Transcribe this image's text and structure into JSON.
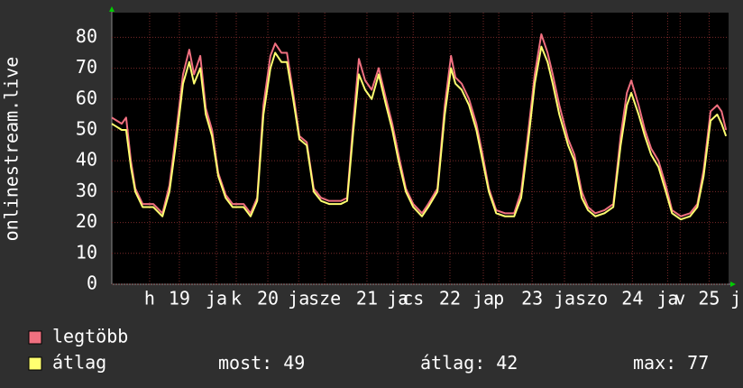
{
  "chart_data": {
    "type": "line",
    "y_label": "onlinestream.live",
    "xlim": [
      0,
      168
    ],
    "ylim": [
      0,
      88
    ],
    "yticks": [
      0,
      10,
      20,
      30,
      40,
      50,
      60,
      70,
      80
    ],
    "xticks": [
      {
        "value": 10.3,
        "label": "h"
      },
      {
        "value": 18.4,
        "label": "19"
      },
      {
        "value": 28.5,
        "label": "ja"
      },
      {
        "value": 33.9,
        "label": "k"
      },
      {
        "value": 42.5,
        "label": "20"
      },
      {
        "value": 50.9,
        "label": "ja"
      },
      {
        "value": 58.0,
        "label": "sze"
      },
      {
        "value": 69.5,
        "label": "21"
      },
      {
        "value": 77.9,
        "label": "ja"
      },
      {
        "value": 82.1,
        "label": "cs"
      },
      {
        "value": 92.1,
        "label": "22"
      },
      {
        "value": 101.2,
        "label": "ja"
      },
      {
        "value": 105.4,
        "label": "p"
      },
      {
        "value": 114.5,
        "label": "23"
      },
      {
        "value": 123.3,
        "label": "ja"
      },
      {
        "value": 130.7,
        "label": "szo"
      },
      {
        "value": 141.8,
        "label": "24"
      },
      {
        "value": 151.4,
        "label": "ja"
      },
      {
        "value": 154.8,
        "label": "v"
      },
      {
        "value": 162.7,
        "label": "25"
      },
      {
        "value": 170.0,
        "label": "j"
      }
    ],
    "grid": true,
    "x": [
      0,
      2.7,
      3.9,
      5.2,
      6.4,
      8.4,
      11.3,
      13.8,
      15.7,
      17.4,
      19.4,
      21.1,
      22.4,
      24.1,
      25.6,
      27.3,
      29.0,
      31.0,
      32.9,
      35.9,
      37.8,
      39.6,
      41.3,
      43.2,
      44.5,
      46.2,
      47.7,
      49.4,
      51.1,
      53.1,
      55.0,
      57.0,
      59.2,
      62.4,
      64.1,
      65.8,
      67.3,
      69.0,
      70.8,
      72.7,
      74.7,
      76.4,
      78.1,
      80.1,
      82.1,
      84.5,
      86.2,
      88.7,
      90.7,
      92.4,
      93.6,
      95.3,
      97.3,
      99.3,
      101.0,
      102.7,
      104.7,
      107.1,
      109.6,
      111.5,
      113.3,
      115.2,
      117.0,
      118.7,
      120.1,
      121.9,
      124.3,
      126.0,
      128.0,
      129.7,
      131.7,
      134.2,
      136.6,
      138.6,
      140.3,
      141.5,
      143.5,
      145.2,
      146.9,
      148.9,
      150.9,
      152.6,
      155.0,
      157.5,
      159.5,
      161.2,
      163.1,
      164.9,
      166.1,
      167.3
    ],
    "series": [
      {
        "name": "legtöbb",
        "color": "#f07080",
        "values": [
          54,
          52,
          54,
          40,
          31,
          26,
          26,
          23,
          32,
          48,
          68,
          76,
          68,
          74,
          57,
          50,
          36,
          29,
          26,
          26,
          23,
          28,
          58,
          74,
          78,
          75,
          75,
          62,
          48,
          46,
          31,
          28,
          27,
          27,
          28,
          53,
          73,
          66,
          63,
          70,
          60,
          52,
          42,
          31,
          26,
          23,
          26,
          31,
          58,
          74,
          67,
          65,
          60,
          52,
          42,
          31,
          24,
          23,
          23,
          30,
          48,
          68,
          81,
          75,
          68,
          58,
          47,
          42,
          30,
          25,
          23,
          24,
          26,
          48,
          62,
          66,
          58,
          50,
          44,
          40,
          32,
          24,
          22,
          23,
          26,
          37,
          56,
          58,
          56,
          50
        ]
      },
      {
        "name": "átlag",
        "color": "#ffff70",
        "values": [
          52,
          50,
          50,
          38,
          30,
          25,
          25,
          22,
          30,
          45,
          65,
          72,
          65,
          70,
          55,
          48,
          35,
          28,
          25,
          25,
          22,
          27,
          55,
          70,
          75,
          72,
          72,
          60,
          47,
          45,
          30,
          27,
          26,
          26,
          27,
          50,
          68,
          63,
          60,
          68,
          58,
          50,
          40,
          30,
          25,
          22,
          25,
          30,
          55,
          70,
          65,
          63,
          58,
          50,
          40,
          30,
          23,
          22,
          22,
          28,
          45,
          65,
          77,
          72,
          65,
          55,
          45,
          40,
          28,
          24,
          22,
          23,
          25,
          45,
          58,
          62,
          55,
          48,
          42,
          38,
          30,
          23,
          21,
          22,
          25,
          35,
          53,
          55,
          52,
          48
        ]
      }
    ],
    "stats": [
      {
        "label": "most:",
        "value": 49
      },
      {
        "label": "átlag:",
        "value": 42
      },
      {
        "label": "max:",
        "value": 77
      }
    ]
  }
}
